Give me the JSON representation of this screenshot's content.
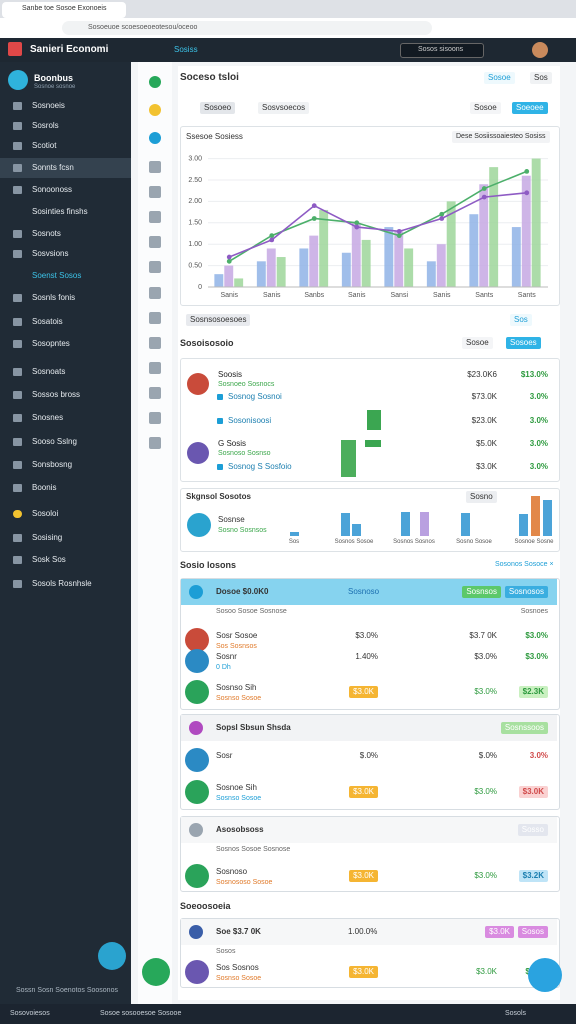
{
  "browser": {
    "tab_title": "Sanbe toe Sosoe Exonoeis",
    "address": "Sosoeuoe scoesoeoeotesou/oceoo"
  },
  "header": {
    "brand": "Sanieri Economi",
    "link": "Sosiss",
    "search": "Sosos sisoons"
  },
  "sidebar": {
    "logo_title": "Boonbus",
    "logo_sub": "Sosnoe sosnoe",
    "items": [
      "Sosnoeis",
      "Sosrols",
      "Scotiot",
      "Sonnts fcsn",
      "Sonoonoss",
      "Sosinties finshs",
      "Sosnots",
      "Sosvsions",
      "Soenst Sosos",
      "Sosnls fonis",
      "Sosatois",
      "Sosopntes",
      "Sosnoats",
      "Sossos bross",
      "Snosnes",
      "Sooso Sslng",
      "Sonsbosng",
      "Boonis",
      "Sosoloi",
      "Sosising",
      "Sosk Sos",
      "Sosols Rosnhsle"
    ],
    "footer": "Sossn Sosn Soenotos Soosonos"
  },
  "page": {
    "title": "Soceso tsloi",
    "buttons": [
      "Sosoe",
      "Sos"
    ],
    "tabs": [
      "Sosoeo",
      "Sosvsoecos"
    ],
    "actions": [
      "Sosoe",
      "Soeoee"
    ],
    "chart_dropdown": "Dese Sosiissoaiesteo Sosiss",
    "filter": "Sosnsosoesoes",
    "filter_right": "Sos",
    "section_title": "Sosoisosoio",
    "section_buttons": [
      "Sosoe",
      "Sosoes"
    ]
  },
  "chart_data": {
    "type": "bar",
    "title": "Ssesoe Sosiess",
    "grid": true,
    "categories": [
      "Sanis",
      "Sanis",
      "Sanbs",
      "Sanis",
      "Sansi",
      "Sanis",
      "Sants",
      "Sants"
    ],
    "ylim": [
      0,
      3.2
    ],
    "yticks": [
      0,
      {
        "value": 0.5,
        "label": "0.50"
      },
      {
        "value": 1,
        "label": "1.00"
      },
      {
        "value": 1.5,
        "label": "1.50"
      },
      {
        "value": 2,
        "label": "2.00"
      },
      {
        "value": 2.5,
        "label": "2.50"
      },
      {
        "value": 3,
        "label": "3.00"
      }
    ],
    "series": [
      {
        "type": "bar",
        "color": "#8fb3e6",
        "values": [
          0.3,
          0.6,
          0.9,
          0.8,
          1.4,
          0.6,
          1.7,
          1.4
        ]
      },
      {
        "type": "bar",
        "color": "#c6a8e3",
        "values": [
          0.5,
          0.9,
          1.2,
          1.5,
          1.3,
          1.0,
          2.4,
          2.6
        ]
      },
      {
        "type": "bar",
        "color": "#9ed69a",
        "values": [
          0.2,
          0.7,
          1.8,
          1.1,
          0.9,
          2.0,
          2.8,
          3.0
        ]
      },
      {
        "type": "line",
        "color": "#4caf6a",
        "values": [
          0.6,
          1.2,
          1.6,
          1.5,
          1.2,
          1.7,
          2.3,
          2.7
        ]
      },
      {
        "type": "line",
        "color": "#8e5bc4",
        "values": [
          0.7,
          1.1,
          1.9,
          1.4,
          1.3,
          1.6,
          2.1,
          2.2
        ]
      }
    ]
  },
  "panel1": {
    "rows": [
      {
        "name": "Soosis",
        "sub": "Sosnoeo Sosnocs",
        "cols": [
          "$23.0K6",
          "$13.0%"
        ]
      },
      {
        "name": "Sosnog Sosnoi",
        "cols": [
          "$73.0K",
          "3.0%"
        ]
      },
      {
        "name": "Sosonisoosi",
        "cols": [
          "$23.0K",
          "3.0%"
        ]
      },
      {
        "name": "G Sosis",
        "sub": "Sosnoso Sosnso",
        "cols": [
          "$5.0K",
          "3.0%"
        ]
      },
      {
        "name": "Sosnog S Sosfoio",
        "cols": [
          "$3.0K",
          "3.0%"
        ]
      }
    ]
  },
  "panel2": {
    "title": "Skgnsol Sosotos",
    "chip": "Sosno",
    "name": "Sosnse",
    "sub": "Sosno Sosnsos",
    "labels": [
      "Sos",
      "Sosnos Sosoe",
      "Sosnos Sosnos",
      "Sosno Sosoe",
      "Sosnoe Sosne"
    ]
  },
  "section2": {
    "title": "Sosio losons",
    "link": "Sosonos Sosoce ×"
  },
  "section3": {
    "title": "Soeoosoeia"
  },
  "cards": [
    {
      "title": "Dosoe $0.0K0",
      "tag": "Sosnoso",
      "chips": [
        "Sosnsos",
        "Sosnosos"
      ],
      "sub": "Sosoo Sosoe Sosnose",
      "sub_right": "Sosnoes",
      "rows": [
        {
          "name": "Sosr Sosoe",
          "sub": "Sos Sosnsos",
          "cols": [
            "$3.0%",
            "$3.7 0K",
            "$3.0%"
          ]
        },
        {
          "name": "Sosnr",
          "sub": "0 Dh",
          "cols": [
            "1.40%",
            "$3.0%",
            "$3.0%"
          ]
        },
        {
          "name": "Sosnso Sih",
          "sub": "Sosnso Sosoe",
          "cols": [
            "$3.0K",
            "$3.0%",
            "$2.3K"
          ]
        }
      ]
    },
    {
      "title": "Sopsl Sbsun Shsda",
      "chips": [
        "Sosnssoos"
      ],
      "rows": [
        {
          "name": "Sosr",
          "cols": [
            "$.0%",
            "$.0%",
            "3.0%"
          ]
        },
        {
          "name": "Sosnoe Sih",
          "sub": "Sosnso Sosoe",
          "cols": [
            "$3.0K",
            "$3.0%",
            "$3.0K"
          ]
        }
      ]
    },
    {
      "title": "Asosobsoss",
      "chips": [
        "Sosso"
      ],
      "sub": "Sosnos Sosoe Sosnose",
      "rows": [
        {
          "name": "Sosnoso",
          "sub": "Sosnososo Sosoe",
          "cols": [
            "$3.0K",
            "$3.0%",
            "$3.2K"
          ]
        }
      ]
    },
    {
      "title": "Soe $3.7 0K",
      "tag": "1.00.0%",
      "chips": [
        "$3.0K",
        "Sosos"
      ],
      "sub": "Sosos",
      "rows": [
        {
          "name": "Sos Sosnos",
          "sub": "Sosnso Sosoe",
          "cols": [
            "$3.0K",
            "$3.0K",
            "$3.0%"
          ]
        }
      ]
    }
  ],
  "status": [
    "Sosovoiesos",
    "Sosoe sosooesoe Sosooe",
    "Sosols"
  ]
}
